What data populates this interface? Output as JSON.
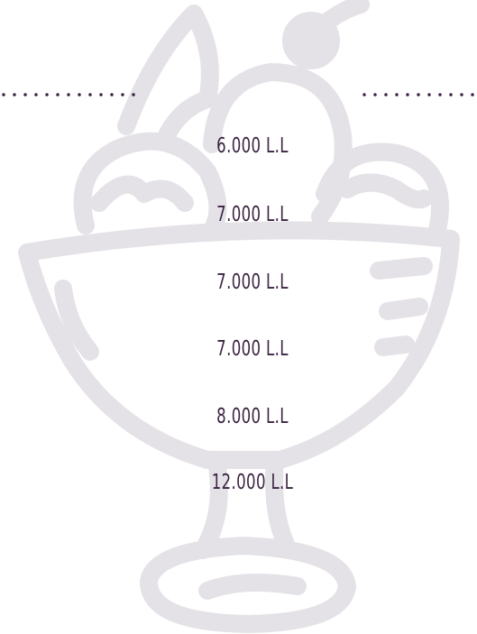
{
  "prices": [
    "6.000 L.L",
    "7.000 L.L",
    "7.000 L.L",
    "7.000 L.L",
    "8.000 L.L",
    "12.000 L.L"
  ]
}
